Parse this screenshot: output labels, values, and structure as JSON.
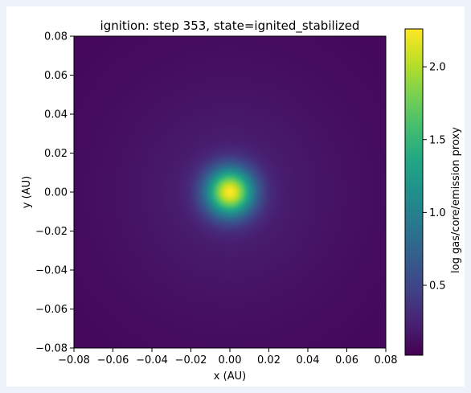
{
  "chart_data": {
    "type": "heatmap",
    "title": "ignition: step 353, state=ignited_stabilized",
    "xlabel": "x (AU)",
    "ylabel": "y (AU)",
    "xlim": [
      -0.08,
      0.08
    ],
    "ylim": [
      -0.08,
      0.08
    ],
    "xticks": [
      -0.08,
      -0.06,
      -0.04,
      -0.02,
      0.0,
      0.02,
      0.04,
      0.06,
      0.08
    ],
    "xtick_labels": [
      "−0.08",
      "−0.06",
      "−0.04",
      "−0.02",
      "0.00",
      "0.02",
      "0.04",
      "0.06",
      "0.08"
    ],
    "yticks": [
      0.08,
      0.06,
      0.04,
      0.02,
      0.0,
      -0.02,
      -0.04,
      -0.06,
      -0.08
    ],
    "ytick_labels": [
      "0.08",
      "0.06",
      "0.04",
      "0.02",
      "0.00",
      "−0.02",
      "−0.04",
      "−0.06",
      "−0.08"
    ],
    "colormap": "viridis",
    "colorbar": {
      "label": "log gas/core/emission proxy",
      "range": [
        0.02,
        2.26
      ],
      "ticks": [
        0.5,
        1.0,
        1.5,
        2.0
      ],
      "tick_labels": [
        "0.5",
        "1.0",
        "1.5",
        "2.0"
      ]
    },
    "field": {
      "shape": "radial",
      "center": [
        0.0,
        0.0
      ],
      "peak_value": 2.26,
      "core_sigma": 0.0085,
      "halo_amplitude": 0.28,
      "halo_scale": 0.06,
      "floor": 0.02
    },
    "grid": false,
    "legend": "none"
  }
}
